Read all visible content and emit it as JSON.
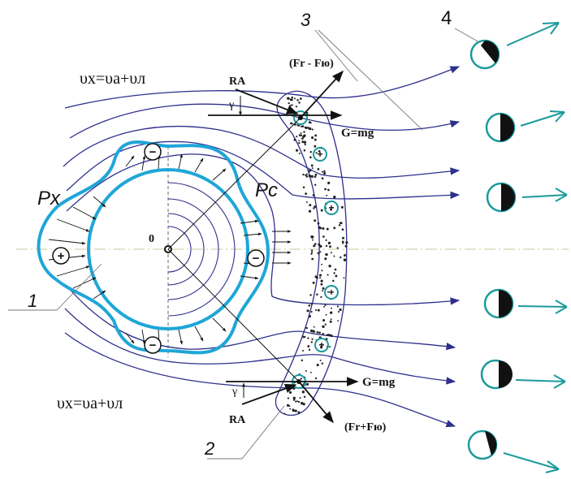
{
  "formula_top": "υx=υa+υл",
  "formula_bottom": "υx=υa+υл",
  "label_px": "Px",
  "label_pc": "Pc",
  "label_center": "0",
  "label_ra_top": "RA",
  "label_ra_bottom": "RA",
  "label_gamma_top": "γ",
  "label_gamma_bottom": "γ",
  "label_force_top": "(Fr - Fю)",
  "label_force_bottom": "(Fr+Fю)",
  "label_g_top": "G=mg",
  "label_g_bottom": "G=mg",
  "callout_1": "1",
  "callout_2": "2",
  "callout_3": "3",
  "callout_4": "4",
  "plus_symbol": "+",
  "minus_symbol": "−",
  "colors": {
    "flow_lines": "#2e2f8c",
    "body_outline": "#1fa6d8",
    "arrow_teal": "#1a9a9c",
    "dark": "#111111",
    "axis_dash": "#c8c89a"
  }
}
